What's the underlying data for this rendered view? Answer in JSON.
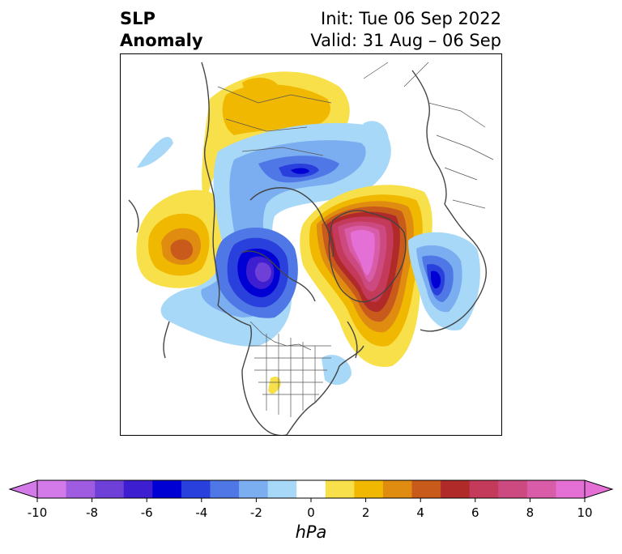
{
  "title": {
    "left_line1": "SLP",
    "left_line2": "Anomaly",
    "right_line1": "Init: Tue 06 Sep 2022",
    "right_line2": "Valid: 31 Aug – 06 Sep"
  },
  "colorbar": {
    "unit": "hPa",
    "ticks": [
      "-10",
      "-8",
      "-6",
      "-4",
      "-2",
      "0",
      "2",
      "4",
      "6",
      "8",
      "10"
    ],
    "levels": [
      -10,
      -9,
      -8,
      -7,
      -6,
      -5,
      -4,
      -3,
      -2,
      -1,
      1,
      2,
      3,
      4,
      5,
      6,
      7,
      8,
      9,
      10
    ],
    "colors": [
      "#d37ae8",
      "#a05ce0",
      "#6f40d8",
      "#3d1ed0",
      "#0000d4",
      "#2a40dc",
      "#4f78e6",
      "#7aaef0",
      "#a8d8f8",
      "#ffffff",
      "#f8e04a",
      "#f0b800",
      "#e08c10",
      "#c85a1c",
      "#b02a2a",
      "#c43a5a",
      "#cc4a80",
      "#d85ca8",
      "#e470d6"
    ],
    "extend_low_color": "#d37ae8",
    "extend_high_color": "#e470d6"
  },
  "map": {
    "projection": "polar stereographic (North Pole)",
    "features": [
      {
        "name": "aleutian-high",
        "sign": "positive",
        "peak_hpa": 5
      },
      {
        "name": "siberian-positive",
        "sign": "positive",
        "peak_hpa": 3
      },
      {
        "name": "arctic-negative",
        "sign": "negative",
        "peak_hpa": -5
      },
      {
        "name": "canada-low",
        "sign": "negative",
        "peak_hpa": -8
      },
      {
        "name": "greenland-high",
        "sign": "positive",
        "peak_hpa": 10
      },
      {
        "name": "scandinavia-low",
        "sign": "negative",
        "peak_hpa": -6
      },
      {
        "name": "us-southwest-positive",
        "sign": "positive",
        "peak_hpa": 1
      },
      {
        "name": "us-northeast-negative",
        "sign": "negative",
        "peak_hpa": -2
      }
    ]
  }
}
